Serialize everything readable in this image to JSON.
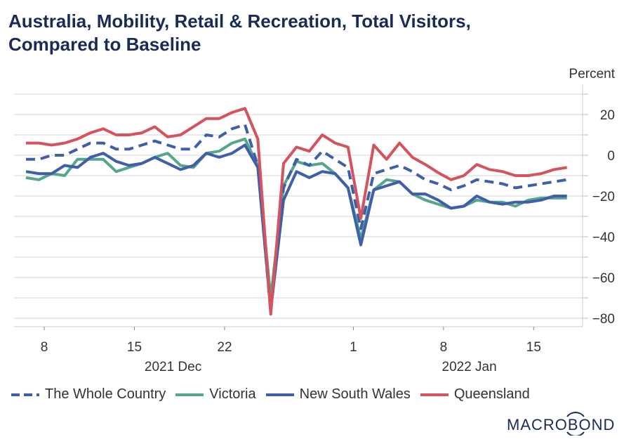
{
  "title_line1": "Australia, Mobility, Retail & Recreation, Total Visitors,",
  "title_line2": "Compared to Baseline",
  "logo": "MACROBOND",
  "colors": {
    "whole_country": "#3f5fa8",
    "victoria": "#55a68b",
    "nsw": "#3f5fa8",
    "queensland": "#d4535c",
    "title": "#1b2b57"
  },
  "chart_data": {
    "type": "line",
    "title": "Australia, Mobility, Retail & Recreation, Total Visitors, Compared to Baseline",
    "ylabel": "Percent",
    "y_axis_side": "right",
    "ylim": [
      -84,
      35
    ],
    "yticks": [
      20,
      0,
      -20,
      -40,
      -60,
      -80
    ],
    "grid": true,
    "legend_placement": "bottom",
    "x_start": "2021-12-06",
    "x_end": "2022-01-17",
    "x_ticks": [
      {
        "date": "2021-12-08",
        "label": "8"
      },
      {
        "date": "2021-12-15",
        "label": "15"
      },
      {
        "date": "2021-12-22",
        "label": "22"
      },
      {
        "date": "2022-01-01",
        "label": "1"
      },
      {
        "date": "2022-01-08",
        "label": "8"
      },
      {
        "date": "2022-01-15",
        "label": "15"
      }
    ],
    "x_group_labels": [
      {
        "label": "2021 Dec",
        "center_date": "2021-12-18"
      },
      {
        "label": "2022 Jan",
        "center_date": "2022-01-10"
      }
    ],
    "series": [
      {
        "name": "The Whole Country",
        "color": "#3f5fa8",
        "dash": true,
        "values": [
          -2,
          -2,
          0,
          0,
          3,
          6,
          6,
          3,
          3,
          5,
          7,
          5,
          3,
          3,
          10,
          9,
          13,
          15,
          -5,
          -77,
          -16,
          -2,
          -5,
          2,
          -2,
          -6,
          -36,
          -9,
          -7,
          -5,
          -8,
          -12,
          -14,
          -17,
          -15,
          -12,
          -13,
          -14,
          -16,
          -15,
          -14,
          -13,
          -12
        ]
      },
      {
        "name": "Victoria",
        "color": "#55a68b",
        "dash": false,
        "values": [
          -11,
          -12,
          -9,
          -10,
          -2,
          -2,
          -2,
          -8,
          -6,
          -4,
          -1,
          1,
          -5,
          -6,
          1,
          2,
          6,
          8,
          -5,
          -70,
          -15,
          -3,
          -5,
          -4,
          -9,
          -16,
          -41,
          -17,
          -12,
          -13,
          -19,
          -22,
          -24,
          -26,
          -25,
          -22,
          -23,
          -23,
          -25,
          -22,
          -21,
          -21,
          -21
        ]
      },
      {
        "name": "New South Wales",
        "color": "#3f5fa8",
        "dash": false,
        "values": [
          -8,
          -9,
          -9,
          -5,
          -6,
          -1,
          1,
          -3,
          -5,
          -4,
          -1,
          -4,
          -7,
          -5,
          1,
          -1,
          1,
          5,
          -6,
          -76,
          -22,
          -8,
          -11,
          -8,
          -9,
          -16,
          -44,
          -17,
          -15,
          -13,
          -19,
          -19,
          -22,
          -26,
          -25,
          -20,
          -23,
          -24,
          -23,
          -23,
          -22,
          -20,
          -20
        ]
      },
      {
        "name": "Queensland",
        "color": "#d4535c",
        "dash": false,
        "values": [
          6,
          6,
          5,
          6,
          8,
          11,
          13,
          10,
          10,
          11,
          14,
          9,
          10,
          14,
          18,
          18,
          21,
          23,
          8,
          -78,
          -4,
          4,
          2,
          10,
          6,
          4,
          -31,
          5,
          -2,
          6,
          -1,
          -4.5,
          -8.5,
          -12,
          -10,
          -4.5,
          -7,
          -8,
          -10,
          -10,
          -9,
          -7,
          -6
        ]
      }
    ]
  }
}
